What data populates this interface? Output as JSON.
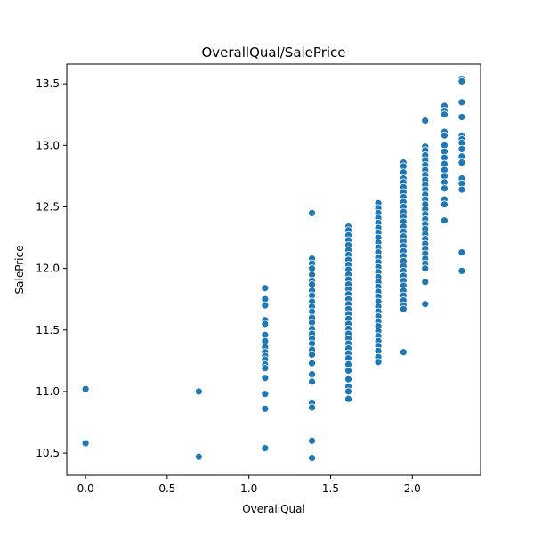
{
  "chart_data": {
    "type": "scatter",
    "title": "OverallQual/SalePrice",
    "xlabel": "OverallQual",
    "ylabel": "SalePrice",
    "xlim": [
      -0.115,
      2.418
    ],
    "ylim": [
      10.32,
      13.66
    ],
    "xticks": [
      0.0,
      0.5,
      1.0,
      1.5,
      2.0
    ],
    "xtick_labels": [
      "0.0",
      "0.5",
      "1.0",
      "1.5",
      "2.0"
    ],
    "yticks": [
      10.5,
      11.0,
      11.5,
      12.0,
      12.5,
      13.0,
      13.5
    ],
    "ytick_labels": [
      "10.5",
      "11.0",
      "11.5",
      "12.0",
      "12.5",
      "13.0",
      "13.5"
    ],
    "grid": false,
    "marker_color": "#1f77b4",
    "marker_edge_color": "#ffffff",
    "points": [
      {
        "x": 0.0,
        "y": 11.02
      },
      {
        "x": 0.0,
        "y": 10.58
      },
      {
        "x": 0.693,
        "y": 11.0
      },
      {
        "x": 0.693,
        "y": 10.47
      },
      {
        "x": 1.099,
        "y": 11.84
      },
      {
        "x": 1.099,
        "y": 11.75
      },
      {
        "x": 1.099,
        "y": 11.7
      },
      {
        "x": 1.099,
        "y": 11.58
      },
      {
        "x": 1.099,
        "y": 11.55
      },
      {
        "x": 1.099,
        "y": 11.46
      },
      {
        "x": 1.099,
        "y": 11.41
      },
      {
        "x": 1.099,
        "y": 11.36
      },
      {
        "x": 1.099,
        "y": 11.32
      },
      {
        "x": 1.099,
        "y": 11.29
      },
      {
        "x": 1.099,
        "y": 11.26
      },
      {
        "x": 1.099,
        "y": 11.22
      },
      {
        "x": 1.099,
        "y": 11.19
      },
      {
        "x": 1.099,
        "y": 11.11
      },
      {
        "x": 1.099,
        "y": 10.98
      },
      {
        "x": 1.099,
        "y": 10.86
      },
      {
        "x": 1.099,
        "y": 10.54
      },
      {
        "x": 1.386,
        "y": 12.45
      },
      {
        "x": 1.386,
        "y": 12.08
      },
      {
        "x": 1.386,
        "y": 12.04
      },
      {
        "x": 1.386,
        "y": 12.0
      },
      {
        "x": 1.386,
        "y": 11.95
      },
      {
        "x": 1.386,
        "y": 11.9
      },
      {
        "x": 1.386,
        "y": 11.87
      },
      {
        "x": 1.386,
        "y": 11.82
      },
      {
        "x": 1.386,
        "y": 11.78
      },
      {
        "x": 1.386,
        "y": 11.73
      },
      {
        "x": 1.386,
        "y": 11.69
      },
      {
        "x": 1.386,
        "y": 11.65
      },
      {
        "x": 1.386,
        "y": 11.6
      },
      {
        "x": 1.386,
        "y": 11.56
      },
      {
        "x": 1.386,
        "y": 11.51
      },
      {
        "x": 1.386,
        "y": 11.47
      },
      {
        "x": 1.386,
        "y": 11.43
      },
      {
        "x": 1.386,
        "y": 11.39
      },
      {
        "x": 1.386,
        "y": 11.34
      },
      {
        "x": 1.386,
        "y": 11.3
      },
      {
        "x": 1.386,
        "y": 11.23
      },
      {
        "x": 1.386,
        "y": 11.14
      },
      {
        "x": 1.386,
        "y": 11.08
      },
      {
        "x": 1.386,
        "y": 10.91
      },
      {
        "x": 1.386,
        "y": 10.87
      },
      {
        "x": 1.386,
        "y": 10.6
      },
      {
        "x": 1.386,
        "y": 10.46
      },
      {
        "x": 1.609,
        "y": 12.34
      },
      {
        "x": 1.609,
        "y": 12.31
      },
      {
        "x": 1.609,
        "y": 12.27
      },
      {
        "x": 1.609,
        "y": 12.23
      },
      {
        "x": 1.609,
        "y": 12.19
      },
      {
        "x": 1.609,
        "y": 12.15
      },
      {
        "x": 1.609,
        "y": 12.11
      },
      {
        "x": 1.609,
        "y": 12.07
      },
      {
        "x": 1.609,
        "y": 12.03
      },
      {
        "x": 1.609,
        "y": 11.99
      },
      {
        "x": 1.609,
        "y": 11.95
      },
      {
        "x": 1.609,
        "y": 11.91
      },
      {
        "x": 1.609,
        "y": 11.87
      },
      {
        "x": 1.609,
        "y": 11.83
      },
      {
        "x": 1.609,
        "y": 11.79
      },
      {
        "x": 1.609,
        "y": 11.75
      },
      {
        "x": 1.609,
        "y": 11.71
      },
      {
        "x": 1.609,
        "y": 11.67
      },
      {
        "x": 1.609,
        "y": 11.63
      },
      {
        "x": 1.609,
        "y": 11.59
      },
      {
        "x": 1.609,
        "y": 11.55
      },
      {
        "x": 1.609,
        "y": 11.51
      },
      {
        "x": 1.609,
        "y": 11.47
      },
      {
        "x": 1.609,
        "y": 11.43
      },
      {
        "x": 1.609,
        "y": 11.39
      },
      {
        "x": 1.609,
        "y": 11.35
      },
      {
        "x": 1.609,
        "y": 11.31
      },
      {
        "x": 1.609,
        "y": 11.27
      },
      {
        "x": 1.609,
        "y": 11.22
      },
      {
        "x": 1.609,
        "y": 11.17
      },
      {
        "x": 1.609,
        "y": 11.1
      },
      {
        "x": 1.609,
        "y": 11.04
      },
      {
        "x": 1.609,
        "y": 11.0
      },
      {
        "x": 1.609,
        "y": 10.94
      },
      {
        "x": 1.792,
        "y": 12.53
      },
      {
        "x": 1.792,
        "y": 12.49
      },
      {
        "x": 1.792,
        "y": 12.45
      },
      {
        "x": 1.792,
        "y": 12.41
      },
      {
        "x": 1.792,
        "y": 12.37
      },
      {
        "x": 1.792,
        "y": 12.33
      },
      {
        "x": 1.792,
        "y": 12.29
      },
      {
        "x": 1.792,
        "y": 12.25
      },
      {
        "x": 1.792,
        "y": 12.21
      },
      {
        "x": 1.792,
        "y": 12.17
      },
      {
        "x": 1.792,
        "y": 12.13
      },
      {
        "x": 1.792,
        "y": 12.09
      },
      {
        "x": 1.792,
        "y": 12.05
      },
      {
        "x": 1.792,
        "y": 12.01
      },
      {
        "x": 1.792,
        "y": 11.97
      },
      {
        "x": 1.792,
        "y": 11.93
      },
      {
        "x": 1.792,
        "y": 11.89
      },
      {
        "x": 1.792,
        "y": 11.85
      },
      {
        "x": 1.792,
        "y": 11.81
      },
      {
        "x": 1.792,
        "y": 11.77
      },
      {
        "x": 1.792,
        "y": 11.73
      },
      {
        "x": 1.792,
        "y": 11.69
      },
      {
        "x": 1.792,
        "y": 11.65
      },
      {
        "x": 1.792,
        "y": 11.61
      },
      {
        "x": 1.792,
        "y": 11.57
      },
      {
        "x": 1.792,
        "y": 11.53
      },
      {
        "x": 1.792,
        "y": 11.49
      },
      {
        "x": 1.792,
        "y": 11.45
      },
      {
        "x": 1.792,
        "y": 11.41
      },
      {
        "x": 1.792,
        "y": 11.37
      },
      {
        "x": 1.792,
        "y": 11.33
      },
      {
        "x": 1.792,
        "y": 11.28
      },
      {
        "x": 1.792,
        "y": 11.24
      },
      {
        "x": 1.946,
        "y": 12.86
      },
      {
        "x": 1.946,
        "y": 12.83
      },
      {
        "x": 1.946,
        "y": 12.78
      },
      {
        "x": 1.946,
        "y": 12.73
      },
      {
        "x": 1.946,
        "y": 12.7
      },
      {
        "x": 1.946,
        "y": 12.66
      },
      {
        "x": 1.946,
        "y": 12.62
      },
      {
        "x": 1.946,
        "y": 12.58
      },
      {
        "x": 1.946,
        "y": 12.54
      },
      {
        "x": 1.946,
        "y": 12.5
      },
      {
        "x": 1.946,
        "y": 12.46
      },
      {
        "x": 1.946,
        "y": 12.42
      },
      {
        "x": 1.946,
        "y": 12.38
      },
      {
        "x": 1.946,
        "y": 12.34
      },
      {
        "x": 1.946,
        "y": 12.3
      },
      {
        "x": 1.946,
        "y": 12.26
      },
      {
        "x": 1.946,
        "y": 12.22
      },
      {
        "x": 1.946,
        "y": 12.18
      },
      {
        "x": 1.946,
        "y": 12.14
      },
      {
        "x": 1.946,
        "y": 12.1
      },
      {
        "x": 1.946,
        "y": 12.06
      },
      {
        "x": 1.946,
        "y": 12.02
      },
      {
        "x": 1.946,
        "y": 11.98
      },
      {
        "x": 1.946,
        "y": 11.94
      },
      {
        "x": 1.946,
        "y": 11.9
      },
      {
        "x": 1.946,
        "y": 11.86
      },
      {
        "x": 1.946,
        "y": 11.82
      },
      {
        "x": 1.946,
        "y": 11.78
      },
      {
        "x": 1.946,
        "y": 11.74
      },
      {
        "x": 1.946,
        "y": 11.7
      },
      {
        "x": 1.946,
        "y": 11.67
      },
      {
        "x": 1.946,
        "y": 11.32
      },
      {
        "x": 2.079,
        "y": 13.2
      },
      {
        "x": 2.079,
        "y": 12.99
      },
      {
        "x": 2.079,
        "y": 12.96
      },
      {
        "x": 2.079,
        "y": 12.92
      },
      {
        "x": 2.079,
        "y": 12.88
      },
      {
        "x": 2.079,
        "y": 12.84
      },
      {
        "x": 2.079,
        "y": 12.8
      },
      {
        "x": 2.079,
        "y": 12.76
      },
      {
        "x": 2.079,
        "y": 12.72
      },
      {
        "x": 2.079,
        "y": 12.68
      },
      {
        "x": 2.079,
        "y": 12.64
      },
      {
        "x": 2.079,
        "y": 12.6
      },
      {
        "x": 2.079,
        "y": 12.56
      },
      {
        "x": 2.079,
        "y": 12.52
      },
      {
        "x": 2.079,
        "y": 12.48
      },
      {
        "x": 2.079,
        "y": 12.44
      },
      {
        "x": 2.079,
        "y": 12.4
      },
      {
        "x": 2.079,
        "y": 12.36
      },
      {
        "x": 2.079,
        "y": 12.32
      },
      {
        "x": 2.079,
        "y": 12.28
      },
      {
        "x": 2.079,
        "y": 12.24
      },
      {
        "x": 2.079,
        "y": 12.2
      },
      {
        "x": 2.079,
        "y": 12.16
      },
      {
        "x": 2.079,
        "y": 12.12
      },
      {
        "x": 2.079,
        "y": 12.08
      },
      {
        "x": 2.079,
        "y": 12.04
      },
      {
        "x": 2.079,
        "y": 12.0
      },
      {
        "x": 2.079,
        "y": 11.89
      },
      {
        "x": 2.079,
        "y": 11.71
      },
      {
        "x": 2.197,
        "y": 13.32
      },
      {
        "x": 2.197,
        "y": 13.28
      },
      {
        "x": 2.197,
        "y": 13.25
      },
      {
        "x": 2.197,
        "y": 13.11
      },
      {
        "x": 2.197,
        "y": 13.08
      },
      {
        "x": 2.197,
        "y": 13.0
      },
      {
        "x": 2.197,
        "y": 12.95
      },
      {
        "x": 2.197,
        "y": 12.9
      },
      {
        "x": 2.197,
        "y": 12.85
      },
      {
        "x": 2.197,
        "y": 12.8
      },
      {
        "x": 2.197,
        "y": 12.75
      },
      {
        "x": 2.197,
        "y": 12.7
      },
      {
        "x": 2.197,
        "y": 12.65
      },
      {
        "x": 2.197,
        "y": 12.56
      },
      {
        "x": 2.197,
        "y": 12.52
      },
      {
        "x": 2.197,
        "y": 12.39
      },
      {
        "x": 2.303,
        "y": 13.54
      },
      {
        "x": 2.303,
        "y": 13.52
      },
      {
        "x": 2.303,
        "y": 13.35
      },
      {
        "x": 2.303,
        "y": 13.23
      },
      {
        "x": 2.303,
        "y": 13.08
      },
      {
        "x": 2.303,
        "y": 13.05
      },
      {
        "x": 2.303,
        "y": 13.02
      },
      {
        "x": 2.303,
        "y": 12.97
      },
      {
        "x": 2.303,
        "y": 12.91
      },
      {
        "x": 2.303,
        "y": 12.86
      },
      {
        "x": 2.303,
        "y": 12.73
      },
      {
        "x": 2.303,
        "y": 12.69
      },
      {
        "x": 2.303,
        "y": 12.64
      },
      {
        "x": 2.303,
        "y": 12.13
      },
      {
        "x": 2.303,
        "y": 11.98
      }
    ]
  }
}
